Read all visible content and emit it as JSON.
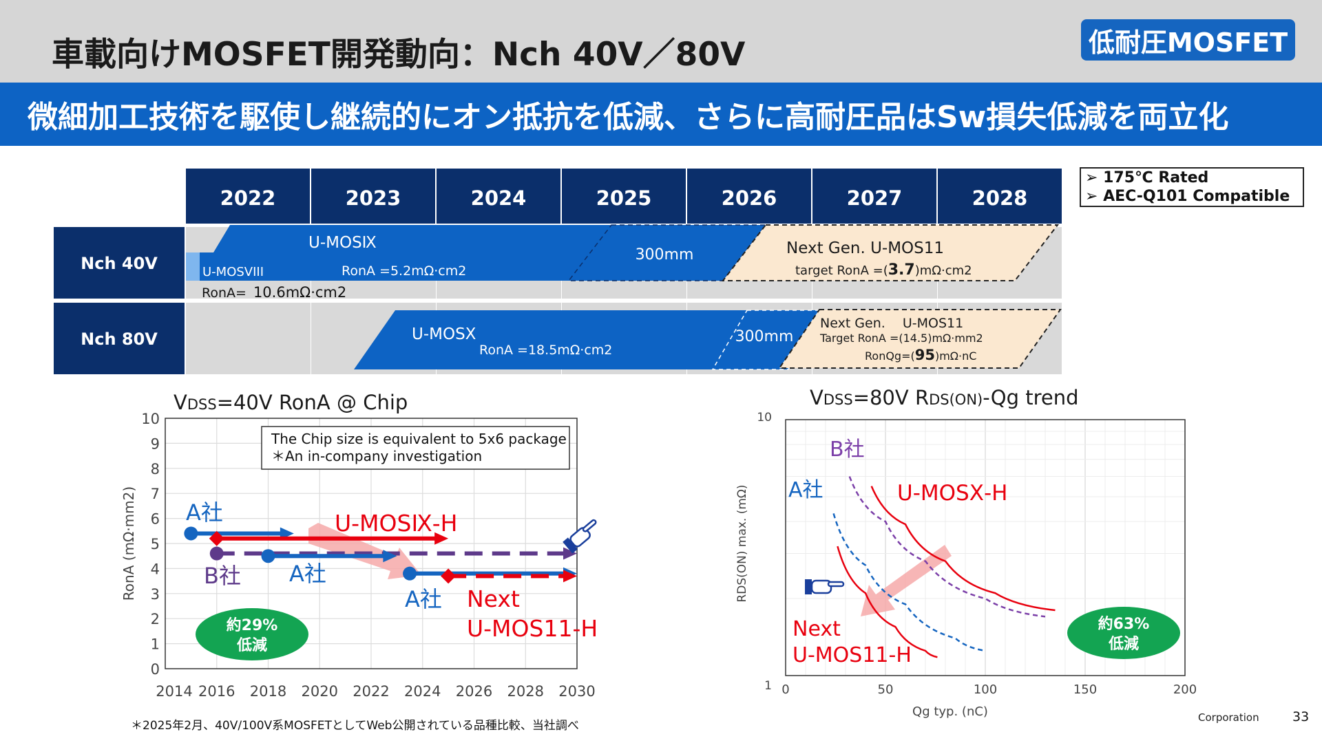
{
  "header": {
    "title": "車載向けMOSFET開発動向：Nch 40V／80V",
    "badge": "低耐圧MOSFET",
    "banner": "微細加工技術を駆使し継続的にオン抵抗を低減、さらに高耐圧品はSw損失低減を両立化"
  },
  "rated": [
    "➢ 175℃ Rated",
    "➢ AEC-Q101 Compatible"
  ],
  "roadmap": {
    "years": [
      "2022",
      "2023",
      "2024",
      "2025",
      "2026",
      "2027",
      "2028"
    ],
    "rows": [
      {
        "label": "Nch 40V"
      },
      {
        "label": "Nch 80V"
      }
    ],
    "nch40": {
      "umos9": "U-MOSⅨ",
      "umos9_rona": "RonA =5.2mΩ·cm2",
      "umos8": "U-MOSVIII",
      "umos8_rona_prefix": "RonA=",
      "umos8_rona_value": "10.6mΩ·cm2",
      "wafer": "300mm",
      "next": "Next Gen. U-MOS11",
      "next_target_prefix": "target RonA =(",
      "next_target_value": "3.7",
      "next_target_suffix": ")mΩ·cm2"
    },
    "nch80": {
      "umosx": "U-MOSX",
      "umosx_rona": "RonA =18.5mΩ·cm2",
      "wafer": "300mm",
      "next_line1": "Next Gen.　 U-MOS11",
      "next_line2": "Target RonA =(14.5)mΩ·mm2",
      "next_ronqg_prefix": "RonQg=(",
      "next_ronqg_value": "95",
      "next_ronqg_suffix": ")mΩ·nC"
    }
  },
  "chart_data": [
    {
      "type": "line",
      "title_prefix": "V",
      "title_sub": "DSS",
      "title_rest": "=40V RonA @ Chip",
      "ylabel": "RonA (mΩ·mm2)",
      "xlim": [
        2014,
        2030
      ],
      "ylim": [
        0,
        10
      ],
      "xticks": [
        "2014",
        "2016",
        "2018",
        "2020",
        "2022",
        "2024",
        "2026",
        "2028",
        "2030"
      ],
      "yticks": [
        "0",
        "1",
        "2",
        "3",
        "4",
        "5",
        "6",
        "7",
        "8",
        "9",
        "10"
      ],
      "grid": true,
      "note_line1": "The Chip size is equivalent to 5x6 package",
      "note_line2": "＊An in-company investigation",
      "series": [
        {
          "name": "A社",
          "label": "A社",
          "color": "#1565c0",
          "x": [
            2015,
            2019
          ],
          "y": [
            5.4,
            5.4
          ]
        },
        {
          "name": "U-MOSⅨ-H",
          "label": "U-MOSⅨ-H",
          "color": "#e8000e",
          "x": [
            2016,
            2025
          ],
          "y": [
            5.2,
            5.2
          ]
        },
        {
          "name": "B社",
          "label": "B社",
          "color": "#5e3a8a",
          "x": [
            2016,
            2030
          ],
          "y": [
            4.6,
            4.6
          ]
        },
        {
          "name": "A社",
          "label": "A社",
          "color": "#1565c0",
          "x": [
            2018,
            2023
          ],
          "y": [
            4.5,
            4.5
          ]
        },
        {
          "name": "A社",
          "label": "A社",
          "color": "#1565c0",
          "x": [
            2023.5,
            2030
          ],
          "y": [
            3.8,
            3.8
          ]
        },
        {
          "name": "Next U-MOS11-H",
          "label_line1": "Next",
          "label_line2": "U-MOS11-H",
          "color": "#e8000e",
          "x": [
            2025,
            2030
          ],
          "y": [
            3.7,
            3.7
          ]
        }
      ],
      "callout": {
        "line1": "約29%",
        "line2": "低減"
      }
    },
    {
      "type": "line",
      "title_prefix": "V",
      "title_sub": "DSS",
      "title_mid": "=80V R",
      "title_sub2": "DS(ON)",
      "title_rest": "-Qg trend",
      "xlabel": "Qg typ. (nC)",
      "ylabel": "RDS(ON) max. (mΩ)",
      "xlim": [
        0,
        200
      ],
      "ylim": [
        1,
        10
      ],
      "yscale": "log",
      "xticks": [
        "0",
        "50",
        "100",
        "150",
        "200"
      ],
      "yticks": [
        "1",
        "10"
      ],
      "grid": true,
      "series": [
        {
          "name": "B社",
          "label": "B社",
          "color": "#7b3fa8",
          "dashed": true,
          "x": [
            32,
            50,
            70,
            100,
            130
          ],
          "y": [
            6.0,
            4.0,
            2.8,
            2.0,
            1.7
          ]
        },
        {
          "name": "U-MOSⅩ-H",
          "label": "U-MOSⅩ-H",
          "color": "#e8000e",
          "x": [
            43,
            60,
            80,
            105,
            135
          ],
          "y": [
            5.5,
            3.9,
            2.8,
            2.1,
            1.8
          ]
        },
        {
          "name": "A社",
          "label": "A社",
          "color": "#1565c0",
          "dashed": true,
          "x": [
            24,
            40,
            60,
            85,
            100
          ],
          "y": [
            4.3,
            2.7,
            1.9,
            1.4,
            1.25
          ]
        },
        {
          "name": "Next U-MOS11-H",
          "label_line1": "Next",
          "label_line2": "U-MOS11-H",
          "color": "#e8000e",
          "x": [
            26,
            40,
            55,
            70,
            76
          ],
          "y": [
            3.2,
            2.1,
            1.55,
            1.25,
            1.18
          ]
        }
      ],
      "callout": {
        "line1": "約63%",
        "line2": "低減"
      }
    }
  ],
  "footer": {
    "note": "＊2025年2月、40V/100V系MOSFETとしてWeb公開されている品種比較、当社調べ",
    "corp": "Corporation",
    "page": "33"
  },
  "colors": {
    "navy": "#0b2f6b",
    "blue": "#0d63c4",
    "lightblue": "#7fb6ee",
    "peach": "#fbe8d0",
    "red": "#e8000e",
    "green": "#13a452",
    "purple": "#5e3a8a"
  }
}
